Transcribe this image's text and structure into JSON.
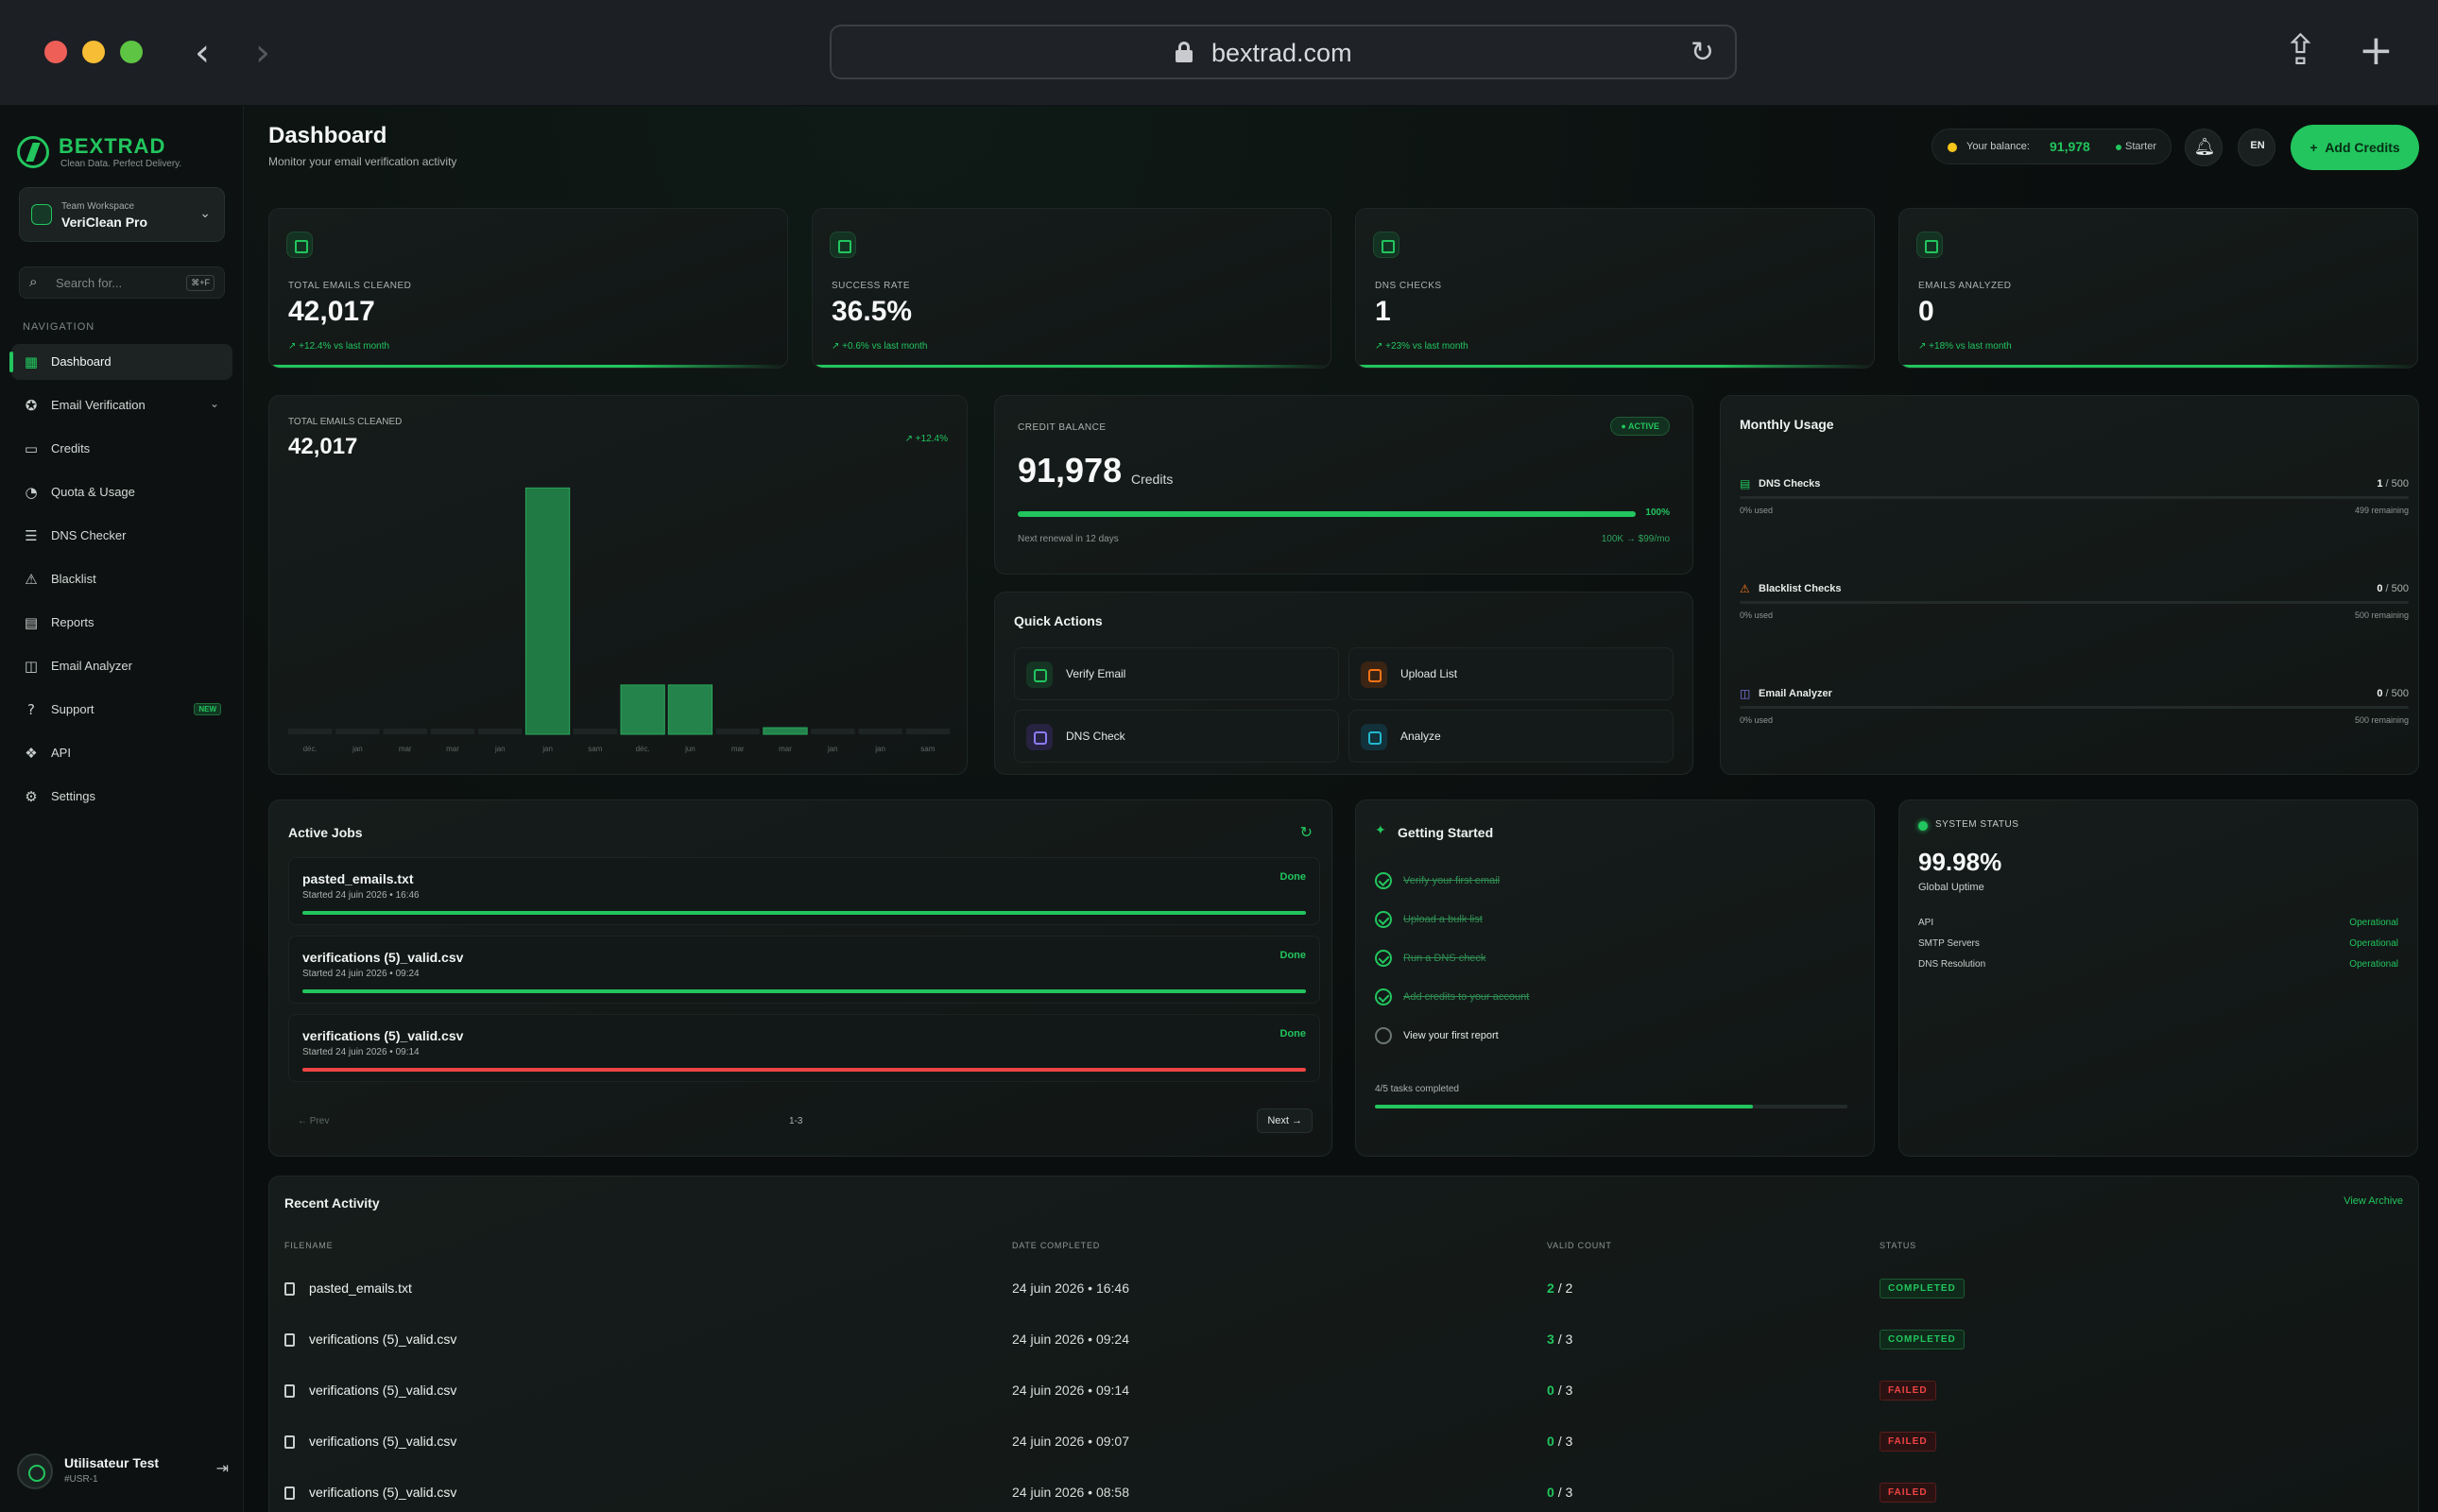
{
  "browser": {
    "url": "bextrad.com"
  },
  "brand": {
    "name": "BEXTRAD",
    "tagline": "Clean Data. Perfect Delivery."
  },
  "workspace": {
    "label": "Team Workspace",
    "name": "VeriClean Pro"
  },
  "search": {
    "placeholder": "Search for...",
    "shortcut": "⌘+F"
  },
  "nav": {
    "heading": "NAVIGATION",
    "items": [
      {
        "label": "Dashboard",
        "icon": "grid-icon"
      },
      {
        "label": "Email Verification",
        "icon": "check-badge-icon"
      },
      {
        "label": "Credits",
        "icon": "card-icon"
      },
      {
        "label": "Quota & Usage",
        "icon": "gauge-icon"
      },
      {
        "label": "DNS Checker",
        "icon": "server-icon"
      },
      {
        "label": "Blacklist",
        "icon": "block-icon"
      },
      {
        "label": "Reports",
        "icon": "document-icon"
      },
      {
        "label": "Email Analyzer",
        "icon": "analyze-icon"
      },
      {
        "label": "Support",
        "icon": "help-icon",
        "badge": "NEW"
      },
      {
        "label": "API",
        "icon": "api-icon"
      },
      {
        "label": "Settings",
        "icon": "gear-icon"
      }
    ]
  },
  "user": {
    "name": "Utilisateur Test",
    "id": "#USR-1"
  },
  "header": {
    "title": "Dashboard",
    "subtitle": "Monitor your email verification activity",
    "balance_label": "Your balance:",
    "balance_value": "91,978",
    "plan": "Starter",
    "lang": "EN",
    "add_credits": "Add Credits"
  },
  "stats": [
    {
      "label": "TOTAL EMAILS CLEANED",
      "value": "42,017",
      "change": "+12.4% vs last month"
    },
    {
      "label": "SUCCESS RATE",
      "value": "36.5%",
      "change": "+0.6% vs last month"
    },
    {
      "label": "DNS CHECKS",
      "value": "1",
      "change": "+23% vs last month"
    },
    {
      "label": "EMAILS ANALYZED",
      "value": "0",
      "change": "+18% vs last month"
    }
  ],
  "chart_data": {
    "type": "bar",
    "label": "TOTAL EMAILS CLEANED",
    "total": "42,017",
    "change": "+12.4%",
    "categories": [
      "déc.",
      "jan",
      "mar",
      "mar",
      "jan",
      "jan",
      "sam",
      "déc.",
      "jun",
      "mar",
      "mar",
      "jan",
      "jan",
      "sam"
    ],
    "values": [
      0,
      0,
      0,
      0,
      0,
      30000,
      0,
      6000,
      6000,
      0,
      800,
      0,
      0,
      0
    ],
    "ylim": [
      0,
      32000
    ],
    "bar_color": "#22c55e"
  },
  "credit": {
    "label": "CREDIT BALANCE",
    "status": "ACTIVE",
    "value": "91,978",
    "unit": "Credits",
    "percent": 100,
    "percent_label": "100%",
    "renewal": "Next renewal in 12 days",
    "plan": "100K → $99/mo"
  },
  "quick_actions": {
    "title": "Quick Actions",
    "items": [
      {
        "label": "Verify Email",
        "icon": "check-circle-icon",
        "color": "#22c55e",
        "bg": "#163423"
      },
      {
        "label": "Upload List",
        "icon": "upload-file-icon",
        "color": "#f97316",
        "bg": "#3a2414"
      },
      {
        "label": "DNS Check",
        "icon": "server-icon",
        "color": "#8b7cf6",
        "bg": "#26223f"
      },
      {
        "label": "Analyze",
        "icon": "analyze-icon",
        "color": "#22b8cf",
        "bg": "#12313a"
      }
    ]
  },
  "monthly_usage": {
    "title": "Monthly Usage",
    "items": [
      {
        "name": "DNS Checks",
        "used": "1",
        "limit": "500",
        "used_label": "0% used",
        "remaining": "499 remaining",
        "color": "#22c55e",
        "icon": "server-icon"
      },
      {
        "name": "Blacklist Checks",
        "used": "0",
        "limit": "500",
        "used_label": "0% used",
        "remaining": "500 remaining",
        "color": "#f97316",
        "icon": "block-icon"
      },
      {
        "name": "Email Analyzer",
        "used": "0",
        "limit": "500",
        "used_label": "0% used",
        "remaining": "500 remaining",
        "color": "#8b7cf6",
        "icon": "analyze-icon"
      }
    ]
  },
  "active_jobs": {
    "title": "Active Jobs",
    "jobs": [
      {
        "file": "pasted_emails.txt",
        "started": "Started 24 juin 2026 • 16:46",
        "status": "Done",
        "bar_color": "#22c55e"
      },
      {
        "file": "verifications (5)_valid.csv",
        "started": "Started 24 juin 2026 • 09:24",
        "status": "Done",
        "bar_color": "#22c55e"
      },
      {
        "file": "verifications (5)_valid.csv",
        "started": "Started 24 juin 2026 • 09:14",
        "status": "Done",
        "bar_color": "#ef4444"
      }
    ],
    "prev": "← Prev",
    "page": "1-3",
    "next": "Next →"
  },
  "getting_started": {
    "title": "Getting Started",
    "tasks": [
      {
        "label": "Verify your first email",
        "done": true
      },
      {
        "label": "Upload a bulk list",
        "done": true
      },
      {
        "label": "Run a DNS check",
        "done": true
      },
      {
        "label": "Add credits to your account",
        "done": true
      },
      {
        "label": "View your first report",
        "done": false
      }
    ],
    "progress_label": "4/5 tasks completed",
    "progress": 0.8
  },
  "system_status": {
    "label": "SYSTEM STATUS",
    "uptime": "99.98%",
    "uptime_label": "Global Uptime",
    "services": [
      {
        "name": "API",
        "status": "Operational"
      },
      {
        "name": "SMTP Servers",
        "status": "Operational"
      },
      {
        "name": "DNS Resolution",
        "status": "Operational"
      }
    ]
  },
  "recent_activity": {
    "title": "Recent Activity",
    "archive": "View Archive",
    "columns": [
      "FILENAME",
      "DATE COMPLETED",
      "VALID COUNT",
      "STATUS"
    ],
    "rows": [
      {
        "file": "pasted_emails.txt",
        "date": "24 juin 2026 • 16:46",
        "valid": "2",
        "total": "/ 2",
        "status": "COMPLETED",
        "ok": true
      },
      {
        "file": "verifications (5)_valid.csv",
        "date": "24 juin 2026 • 09:24",
        "valid": "3",
        "total": "/ 3",
        "status": "COMPLETED",
        "ok": true
      },
      {
        "file": "verifications (5)_valid.csv",
        "date": "24 juin 2026 • 09:14",
        "valid": "0",
        "total": "/ 3",
        "status": "FAILED",
        "ok": false
      },
      {
        "file": "verifications (5)_valid.csv",
        "date": "24 juin 2026 • 09:07",
        "valid": "0",
        "total": "/ 3",
        "status": "FAILED",
        "ok": false
      },
      {
        "file": "verifications (5)_valid.csv",
        "date": "24 juin 2026 • 08:58",
        "valid": "0",
        "total": "/ 3",
        "status": "FAILED",
        "ok": false
      }
    ]
  }
}
